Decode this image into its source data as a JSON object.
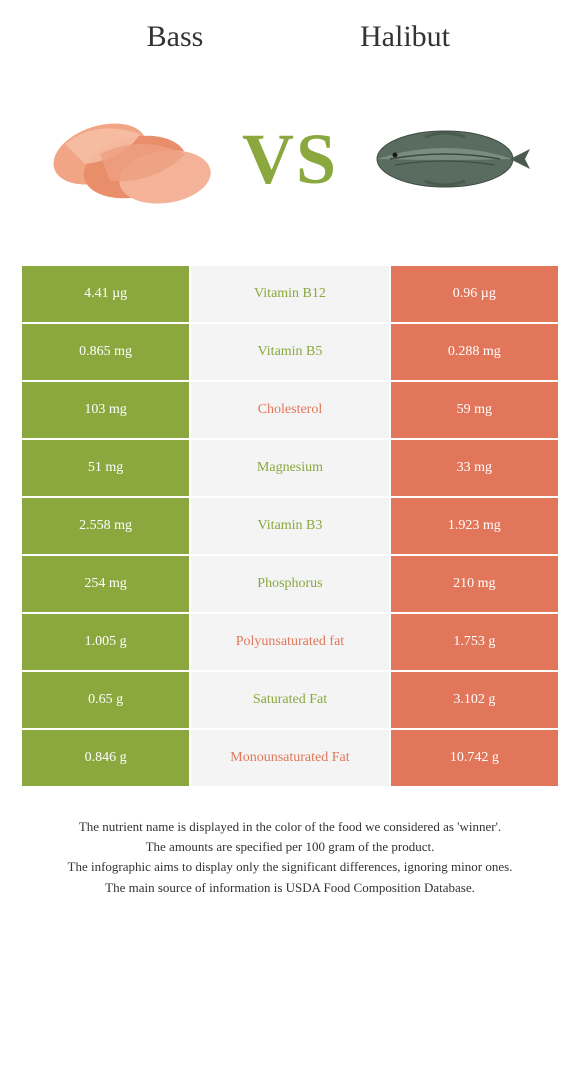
{
  "header": {
    "left_title": "Bass",
    "right_title": "Halibut"
  },
  "hero": {
    "vs_label": "VS"
  },
  "colors": {
    "left_bg": "#8aa83e",
    "right_bg": "#e1765a",
    "mid_bg": "#f4f4f4",
    "left_text": "#8aa83e",
    "right_text": "#e1765a",
    "body_text": "#333333",
    "white": "#ffffff"
  },
  "rows": [
    {
      "left": "4.41 µg",
      "name": "Vitamin B12",
      "right": "0.96 µg",
      "winner": "left"
    },
    {
      "left": "0.865 mg",
      "name": "Vitamin B5",
      "right": "0.288 mg",
      "winner": "left"
    },
    {
      "left": "103 mg",
      "name": "Cholesterol",
      "right": "59 mg",
      "winner": "right"
    },
    {
      "left": "51 mg",
      "name": "Magnesium",
      "right": "33 mg",
      "winner": "left"
    },
    {
      "left": "2.558 mg",
      "name": "Vitamin B3",
      "right": "1.923 mg",
      "winner": "left"
    },
    {
      "left": "254 mg",
      "name": "Phosphorus",
      "right": "210 mg",
      "winner": "left"
    },
    {
      "left": "1.005 g",
      "name": "Polyunsaturated fat",
      "right": "1.753 g",
      "winner": "right"
    },
    {
      "left": "0.65 g",
      "name": "Saturated Fat",
      "right": "3.102 g",
      "winner": "left"
    },
    {
      "left": "0.846 g",
      "name": "Monounsaturated Fat",
      "right": "10.742 g",
      "winner": "right"
    }
  ],
  "footer": {
    "line1": "The nutrient name is displayed in the color of the food we considered as 'winner'.",
    "line2": "The amounts are specified per 100 gram of the product.",
    "line3": "The infographic aims to display only the significant differences, ignoring minor ones.",
    "line4": "The main source of information is USDA Food Composition Database."
  }
}
